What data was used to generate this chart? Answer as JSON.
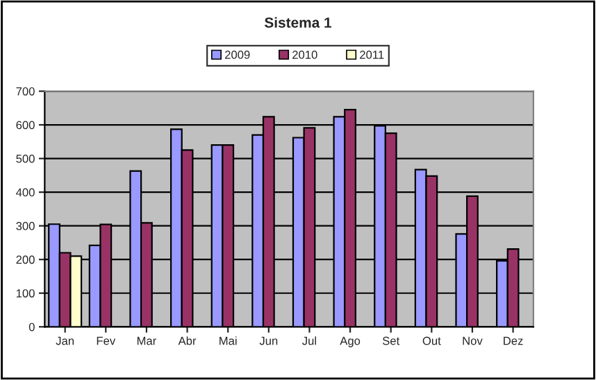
{
  "chart_data": {
    "type": "bar",
    "title": "Sistema 1",
    "categories": [
      "Jan",
      "Fev",
      "Mar",
      "Abr",
      "Mai",
      "Jun",
      "Jul",
      "Ago",
      "Set",
      "Out",
      "Nov",
      "Dez"
    ],
    "series": [
      {
        "name": "2009",
        "color": "#9999ff",
        "values": [
          305,
          242,
          463,
          587,
          540,
          570,
          562,
          624,
          597,
          467,
          276,
          196
        ]
      },
      {
        "name": "2010",
        "color": "#993366",
        "values": [
          220,
          304,
          309,
          525,
          540,
          624,
          591,
          645,
          575,
          448,
          388,
          231
        ]
      },
      {
        "name": "2011",
        "color": "#ffffcc",
        "values": [
          210,
          null,
          null,
          null,
          null,
          null,
          null,
          null,
          null,
          null,
          null,
          null
        ]
      }
    ],
    "ylim": [
      0,
      700
    ],
    "yticks": [
      0,
      100,
      200,
      300,
      400,
      500,
      600,
      700
    ],
    "grid": "y",
    "legend": "top"
  }
}
